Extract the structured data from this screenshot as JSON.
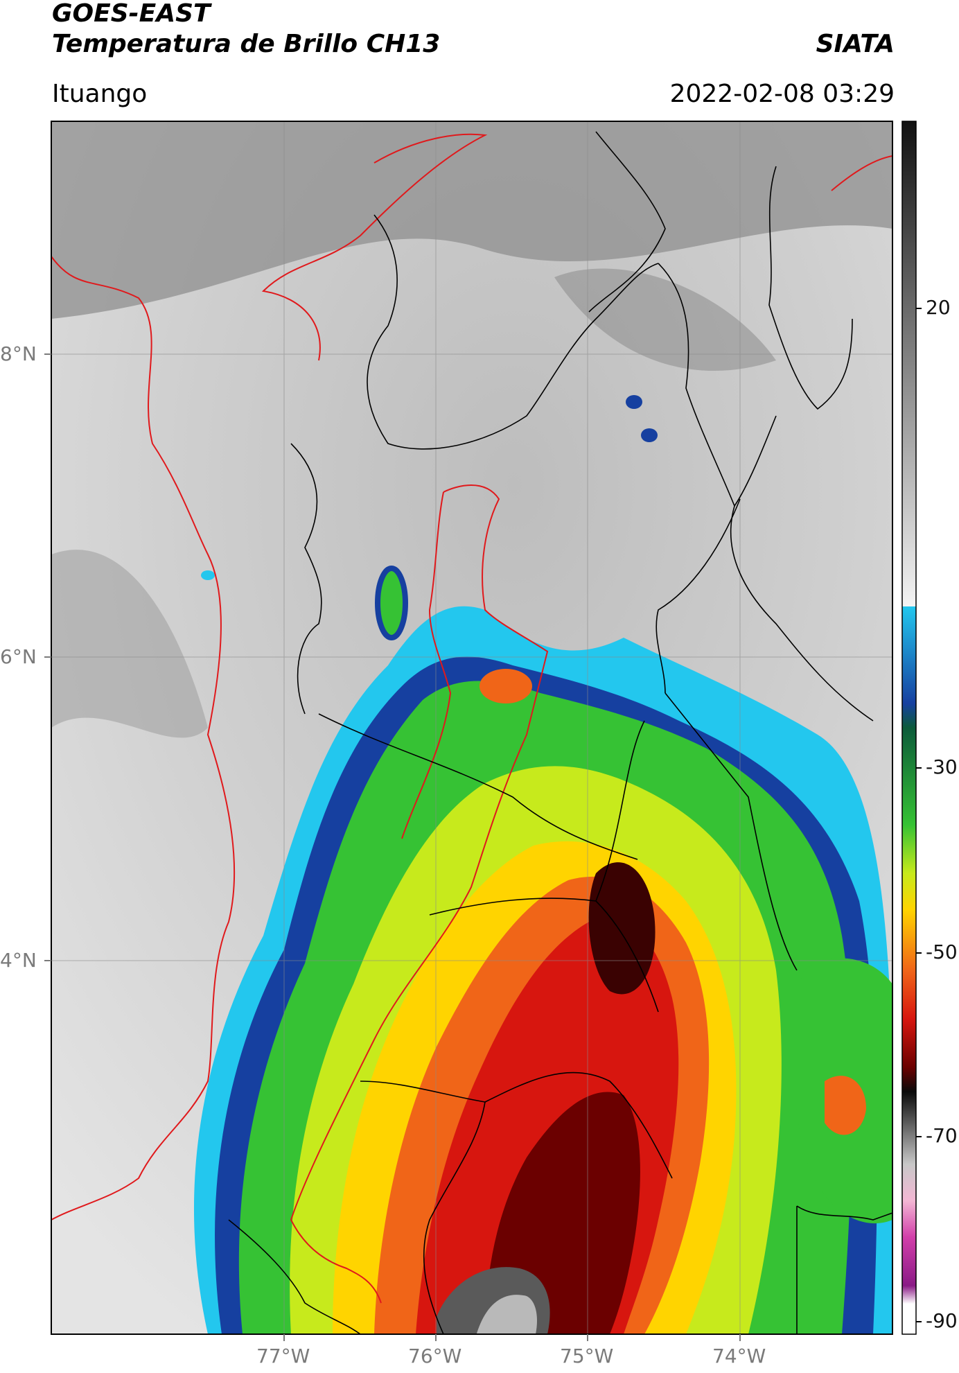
{
  "header": {
    "title_line1": "GOES-EAST",
    "title_line2": "Temperatura de Brillo CH13",
    "brand": "SIATA",
    "location": "Ituango",
    "timestamp": "2022-02-08 03:29"
  },
  "map": {
    "lat_ticks": [
      "8°N",
      "6°N",
      "4°N"
    ],
    "lon_ticks": [
      "77°W",
      "76°W",
      "75°W",
      "74°W"
    ],
    "border_colors": {
      "country": "#e0191c",
      "admin": "#000000"
    }
  },
  "colorbar": {
    "labels": [
      "20",
      "-30",
      "-50",
      "-70",
      "-90"
    ],
    "unit": ""
  }
}
